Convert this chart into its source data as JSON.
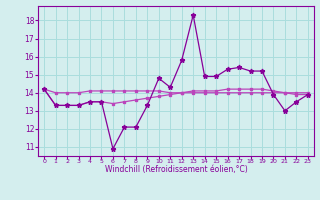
{
  "x": [
    0,
    1,
    2,
    3,
    4,
    5,
    6,
    7,
    8,
    9,
    10,
    11,
    12,
    13,
    14,
    15,
    16,
    17,
    18,
    19,
    20,
    21,
    22,
    23
  ],
  "line1": [
    14.2,
    13.3,
    13.3,
    13.3,
    13.5,
    13.5,
    10.9,
    12.1,
    12.1,
    13.3,
    14.8,
    14.3,
    15.8,
    18.3,
    14.9,
    14.9,
    15.3,
    15.4,
    15.2,
    15.2,
    13.9,
    13.0,
    13.5,
    13.9
  ],
  "line2": [
    14.2,
    13.3,
    13.3,
    13.3,
    13.5,
    13.5,
    13.4,
    13.5,
    13.6,
    13.7,
    13.8,
    13.9,
    14.0,
    14.1,
    14.1,
    14.1,
    14.2,
    14.2,
    14.2,
    14.2,
    14.1,
    14.0,
    13.9,
    13.9
  ],
  "line3": [
    14.2,
    14.0,
    14.0,
    14.0,
    14.1,
    14.1,
    14.1,
    14.1,
    14.1,
    14.1,
    14.1,
    14.0,
    14.0,
    14.0,
    14.0,
    14.0,
    14.0,
    14.0,
    14.0,
    14.0,
    14.0,
    14.0,
    14.0,
    14.0
  ],
  "color_main": "#880099",
  "color_line2": "#bb44bb",
  "color_line3": "#bb44bb",
  "bg_color": "#d4eeee",
  "grid_color": "#aadddd",
  "ylabel_values": [
    11,
    12,
    13,
    14,
    15,
    16,
    17,
    18
  ],
  "xlabel": "Windchill (Refroidissement éolien,°C)",
  "ylim": [
    10.5,
    18.8
  ],
  "xlim": [
    -0.5,
    23.5
  ]
}
